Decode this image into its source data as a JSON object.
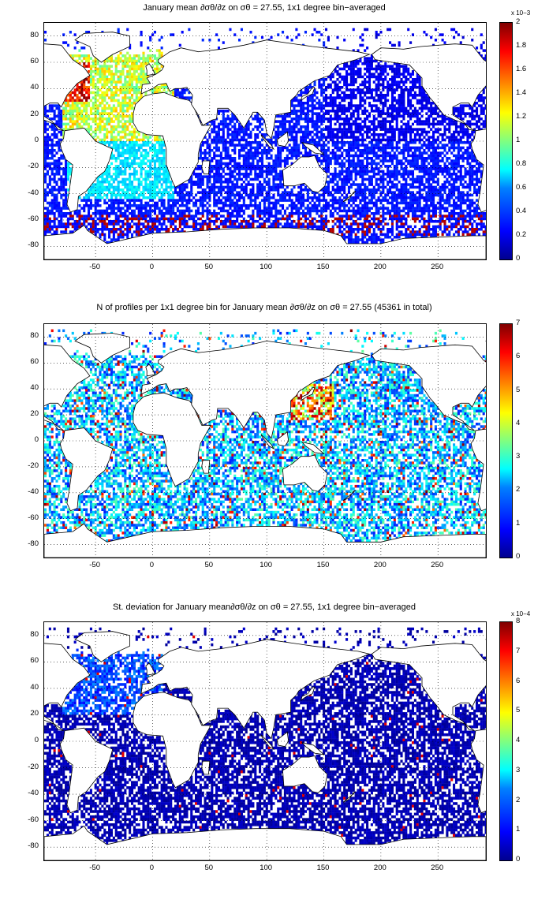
{
  "panels": [
    {
      "id": "mean",
      "title": "January mean ∂σθ/∂z on σθ = 27.55, 1x1 degree bin−averaged",
      "colorbar": {
        "ticks": [
          "0",
          "0.2",
          "0.4",
          "0.6",
          "0.8",
          "1",
          "1.2",
          "1.4",
          "1.6",
          "1.8",
          "2"
        ],
        "exponent": "x 10−3",
        "range": [
          0,
          0.002
        ]
      }
    },
    {
      "id": "count",
      "title": "N of profiles per 1x1 degree bin for January mean ∂σθ/∂z on σθ = 27.55 (45361 in total)",
      "colorbar": {
        "ticks": [
          "0",
          "1",
          "2",
          "3",
          "4",
          "5",
          "6",
          "7"
        ],
        "exponent": "",
        "range": [
          0,
          7
        ]
      }
    },
    {
      "id": "std",
      "title": "St. deviation for January mean∂σθ/∂z on σθ = 27.55, 1x1 degree bin−averaged",
      "colorbar": {
        "ticks": [
          "0",
          "1",
          "2",
          "3",
          "4",
          "5",
          "6",
          "7",
          "8"
        ],
        "exponent": "x 10−4",
        "range": [
          0,
          0.0008
        ]
      }
    }
  ],
  "axes": {
    "lon_range": [
      -95,
      292
    ],
    "lat_range": [
      -90,
      90
    ],
    "xticks": [
      "-50",
      "0",
      "50",
      "100",
      "150",
      "200",
      "250"
    ],
    "yticks": [
      "80",
      "60",
      "40",
      "20",
      "0",
      "-20",
      "-40",
      "-60",
      "-80"
    ]
  },
  "colors": {
    "land": "#ffffff",
    "coast": "#000000",
    "grid": "#000000"
  },
  "colormap": "jet",
  "chart_data": [
    {
      "type": "heatmap",
      "title": "January mean ∂σθ/∂z on σθ = 27.55, 1x1 degree bin−averaged",
      "xlabel": "",
      "ylabel": "",
      "xlim": [
        -95,
        292
      ],
      "ylim": [
        -90,
        90
      ],
      "clim": [
        0,
        0.002
      ],
      "grid": true,
      "colormap": "jet"
    },
    {
      "type": "heatmap",
      "title": "N of profiles per 1x1 degree bin for January mean ∂σθ/∂z on σθ = 27.55 (45361 in total)",
      "xlabel": "",
      "ylabel": "",
      "xlim": [
        -95,
        292
      ],
      "ylim": [
        -90,
        90
      ],
      "clim": [
        0,
        7
      ],
      "grid": true,
      "colormap": "jet"
    },
    {
      "type": "heatmap",
      "title": "St. deviation for January mean∂σθ/∂z on σθ = 27.55, 1x1 degree bin−averaged",
      "xlabel": "",
      "ylabel": "",
      "xlim": [
        -95,
        292
      ],
      "ylim": [
        -90,
        90
      ],
      "clim": [
        0,
        0.0008
      ],
      "grid": true,
      "colormap": "jet"
    }
  ]
}
